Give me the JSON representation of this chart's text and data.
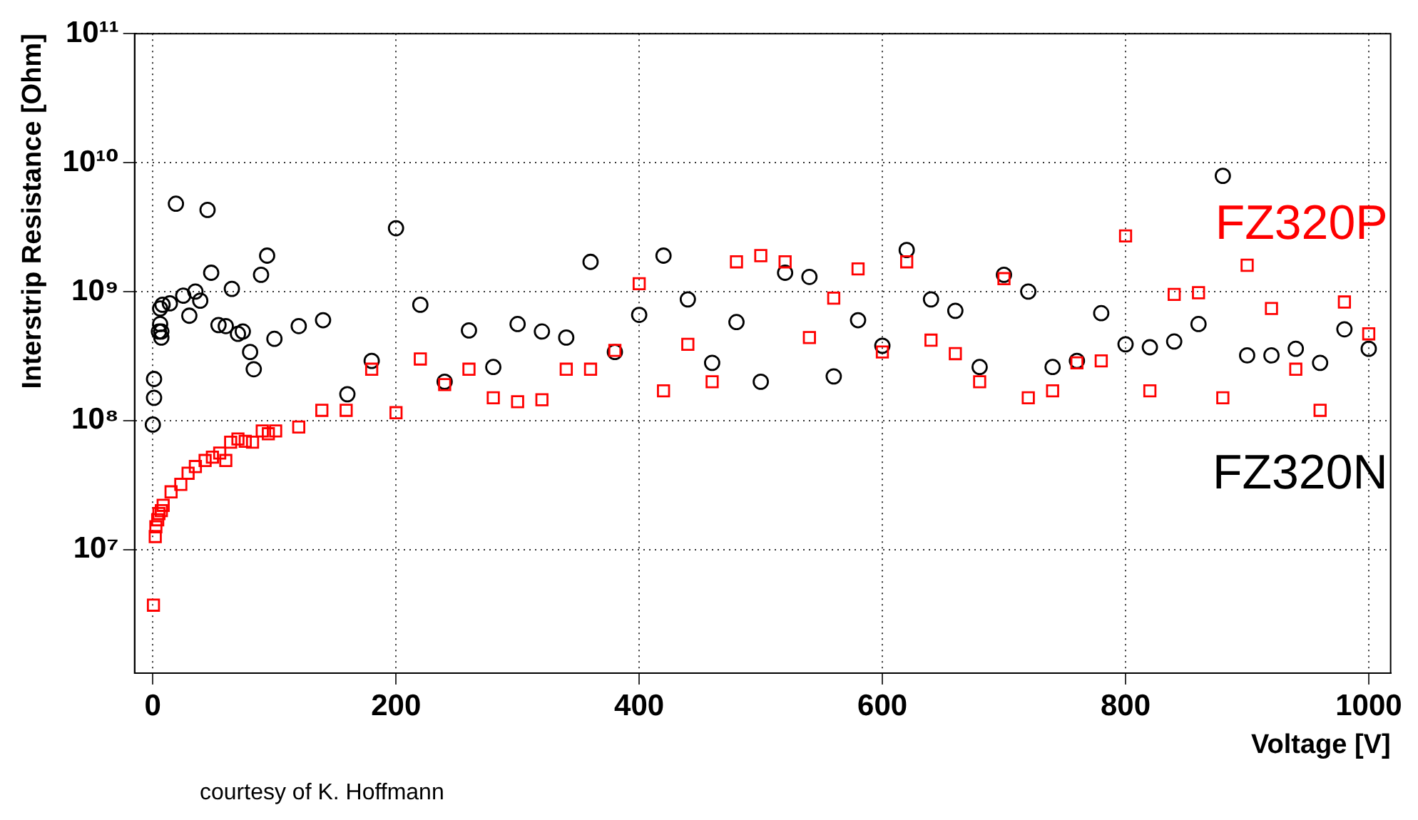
{
  "chart_data": {
    "type": "scatter",
    "xlabel": "Voltage [V]",
    "ylabel": "Interstrip Resistance [Ohm]",
    "log": "y",
    "grid": true,
    "legend": false,
    "xlim": [
      -15,
      1018
    ],
    "xticks": [
      0,
      200,
      400,
      600,
      800,
      1000
    ],
    "ylim": [
      1100000,
      100000000000.0
    ],
    "yticks": [
      {
        "value": 10000000.0,
        "label": "10⁷"
      },
      {
        "value": 100000000.0,
        "label": "10⁸"
      },
      {
        "value": 1000000000.0,
        "label": "10⁹"
      },
      {
        "value": 10000000000.0,
        "label": "10¹⁰"
      },
      {
        "value": 100000000000.0,
        "label": "10¹¹"
      }
    ],
    "annotations": [
      "courtesy of K. Hoffmann"
    ],
    "series": [
      {
        "name": "FZ320P",
        "color": "#ff0000",
        "marker": "square",
        "x": [
          0.5,
          2,
          2.5,
          4,
          5,
          7,
          8.5,
          15,
          23,
          29,
          35,
          43,
          49,
          55,
          60,
          64,
          70,
          76,
          82,
          90,
          95,
          101,
          120,
          139,
          159,
          180,
          200,
          220,
          240,
          260,
          280,
          300,
          320,
          340,
          360,
          380,
          400,
          420,
          440,
          460,
          480,
          500,
          520,
          540,
          560,
          580,
          600,
          620,
          640,
          660,
          680,
          700,
          720,
          740,
          760,
          780,
          800,
          820,
          840,
          860,
          880,
          900,
          920,
          940,
          960,
          980,
          1000
        ],
        "values": [
          3700000.0,
          12600000.0,
          15000000.0,
          17000000.0,
          19000000.0,
          20000000.0,
          22000000.0,
          28000000.0,
          32000000.0,
          39000000.0,
          44000000.0,
          49000000.0,
          52000000.0,
          56000000.0,
          49000000.0,
          68000000.0,
          72000000.0,
          69000000.0,
          68000000.0,
          83000000.0,
          79000000.0,
          83000000.0,
          89000000.0,
          120000000.0,
          120000000.0,
          250000000.0,
          115000000.0,
          300000000.0,
          190000000.0,
          250000000.0,
          150000000.0,
          140000000.0,
          145000000.0,
          250000000.0,
          250000000.0,
          350000000.0,
          1150000000.0,
          170000000.0,
          390000000.0,
          200000000.0,
          1700000000.0,
          1900000000.0,
          1700000000.0,
          440000000.0,
          890000000.0,
          1500000000.0,
          340000000.0,
          1700000000.0,
          420000000.0,
          330000000.0,
          200000000.0,
          1260000000.0,
          150000000.0,
          170000000.0,
          280000000.0,
          290000000.0,
          2700000000.0,
          170000000.0,
          950000000.0,
          980000000.0,
          150000000.0,
          1600000000.0,
          740000000.0,
          250000000.0,
          120000000.0,
          830000000.0,
          470000000.0
        ]
      },
      {
        "name": "FZ320N",
        "color": "#000000",
        "marker": "circle",
        "x": [
          0,
          1,
          1,
          5,
          7,
          6,
          7,
          6,
          8,
          14,
          25,
          35,
          39,
          30,
          19,
          45,
          48,
          65,
          54,
          60,
          70,
          74,
          80,
          83,
          89,
          94,
          100,
          120,
          140,
          160,
          180,
          200,
          220,
          240,
          260,
          280,
          300,
          320,
          340,
          360,
          380,
          400,
          420,
          440,
          460,
          480,
          500,
          520,
          540,
          560,
          580,
          600,
          620,
          640,
          660,
          680,
          700,
          720,
          740,
          760,
          780,
          800,
          820,
          840,
          860,
          880,
          900,
          920,
          940,
          960,
          980,
          1000
        ],
        "values": [
          93000000.0,
          150000000.0,
          210000000.0,
          490000000.0,
          490000000.0,
          560000000.0,
          440000000.0,
          740000000.0,
          790000000.0,
          810000000.0,
          930000000.0,
          1000000000.0,
          850000000.0,
          650000000.0,
          4800000000.0,
          4300000000.0,
          1400000000.0,
          1050000000.0,
          550000000.0,
          540000000.0,
          470000000.0,
          490000000.0,
          340000000.0,
          250000000.0,
          1350000000.0,
          1900000000.0,
          430000000.0,
          540000000.0,
          600000000.0,
          160000000.0,
          290000000.0,
          3100000000.0,
          790000000.0,
          200000000.0,
          500000000.0,
          260000000.0,
          560000000.0,
          490000000.0,
          440000000.0,
          1700000000.0,
          340000000.0,
          660000000.0,
          1900000000.0,
          870000000.0,
          280000000.0,
          580000000.0,
          200000000.0,
          1400000000.0,
          1300000000.0,
          220000000.0,
          600000000.0,
          380000000.0,
          2100000000.0,
          870000000.0,
          710000000.0,
          260000000.0,
          1350000000.0,
          1000000000.0,
          260000000.0,
          290000000.0,
          680000000.0,
          390000000.0,
          370000000.0,
          410000000.0,
          560000000.0,
          7900000000.0,
          320000000.0,
          320000000.0,
          360000000.0,
          280000000.0,
          510000000.0,
          360000000.0
        ]
      }
    ]
  }
}
